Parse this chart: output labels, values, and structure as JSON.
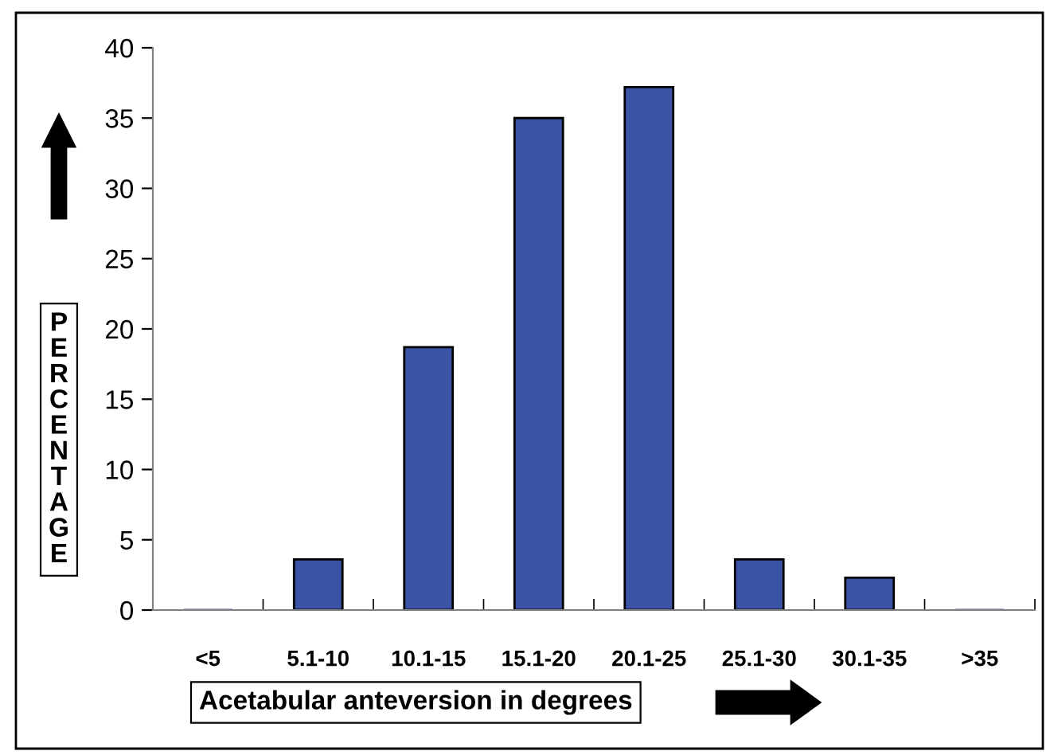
{
  "chart_data": {
    "type": "bar",
    "categories": [
      "<5",
      "5.1-10",
      "10.1-15",
      "15.1-20",
      "20.1-25",
      "25.1-30",
      "30.1-35",
      ">35"
    ],
    "values": [
      0,
      3.6,
      18.7,
      35,
      37.2,
      3.6,
      2.3,
      0
    ],
    "color": "#3a53a4",
    "xlabel": "Acetabular anteversion in degrees",
    "ylabel": "PERCENTAGE",
    "ylim": [
      0,
      40
    ],
    "yticks": [
      0,
      5,
      10,
      15,
      20,
      25,
      30,
      35,
      40
    ],
    "grid": false
  }
}
